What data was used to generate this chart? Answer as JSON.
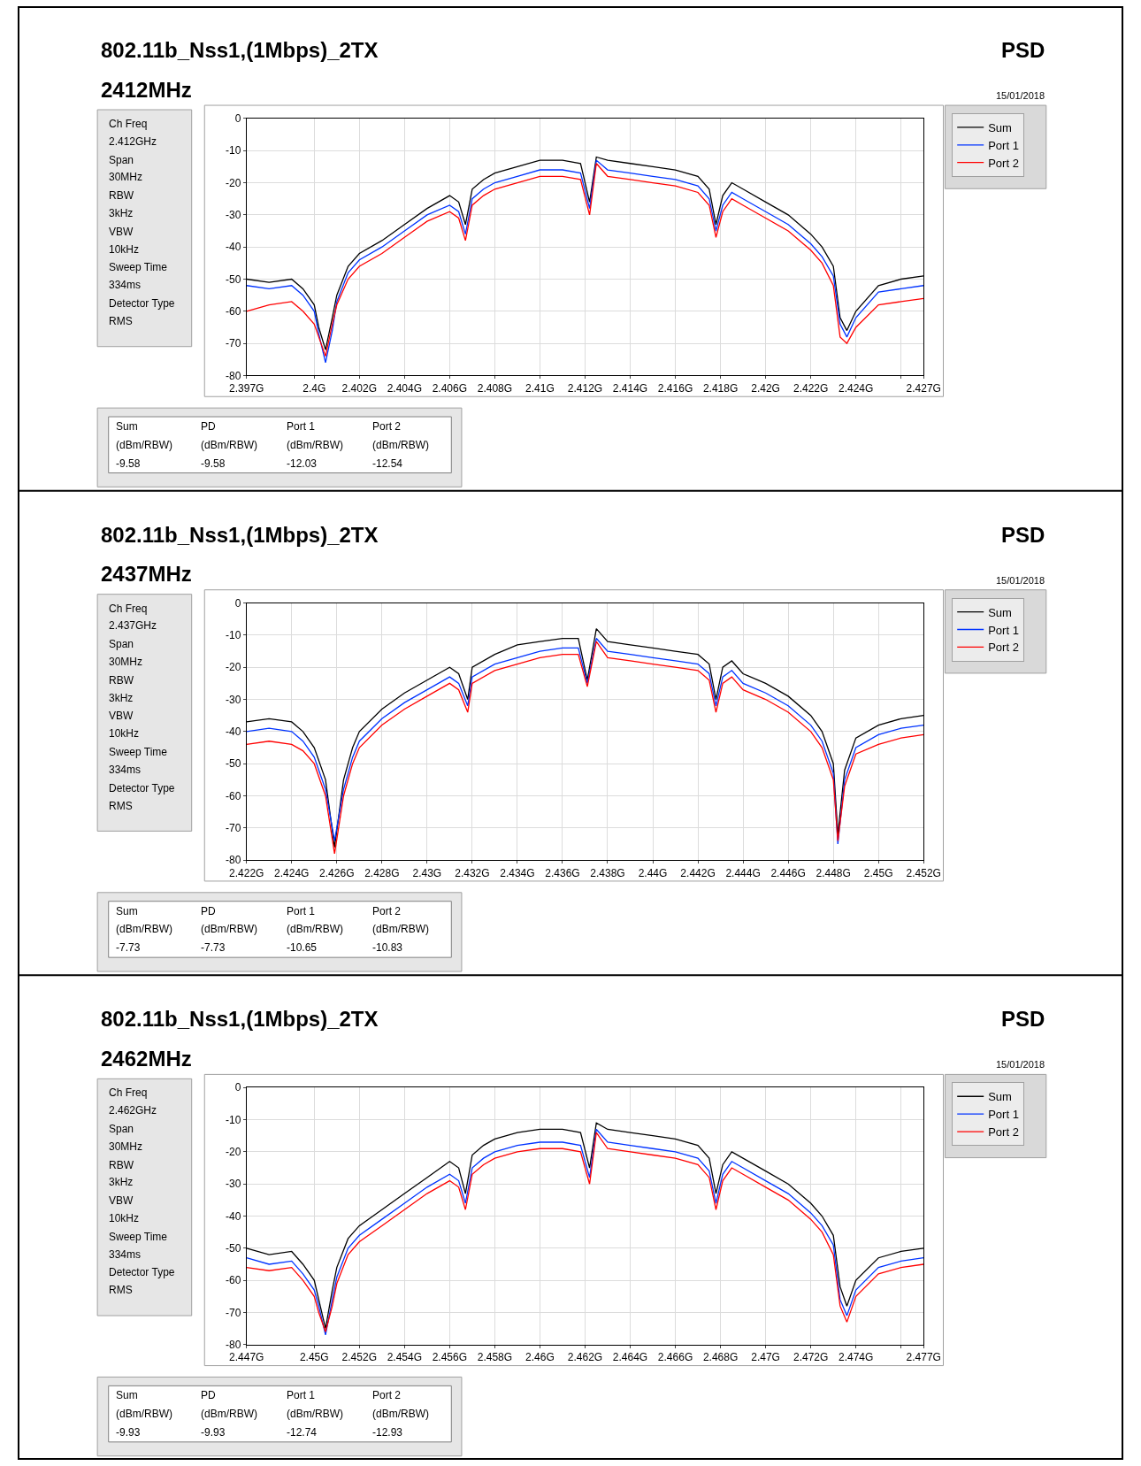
{
  "chart_data": [
    {
      "type": "line",
      "title": "802.11b_Nss1,(1Mbps)_2TX",
      "subtitle": "2412MHz",
      "annotations": [
        "PSD",
        "15/01/2018",
        "Ch Freq",
        "2.412GHz",
        "Span",
        "30MHz",
        "RBW",
        "3kHz",
        "VBW",
        "10kHz",
        "Sweep Time",
        "334ms",
        "Detector Type",
        "RMS",
        "Sum",
        "PD",
        "Port 1",
        "Port 2",
        "(dBm/RBW)",
        "(dBm/RBW)",
        "(dBm/RBW)",
        "(dBm/RBW)",
        "-9.58",
        "-9.58",
        "-12.03",
        "-12.54"
      ],
      "x": [
        2.397,
        2.398,
        2.399,
        2.3995,
        2.4,
        2.4002,
        2.4005,
        2.4008,
        2.401,
        2.4015,
        2.402,
        2.403,
        2.404,
        2.405,
        2.406,
        2.4064,
        2.4067,
        2.407,
        2.4075,
        2.408,
        2.409,
        2.41,
        2.411,
        2.4118,
        2.4122,
        2.4125,
        2.413,
        2.414,
        2.415,
        2.416,
        2.417,
        2.4175,
        2.4178,
        2.4181,
        2.4185,
        2.419,
        2.42,
        2.421,
        2.422,
        2.4225,
        2.423,
        2.4233,
        2.4236,
        2.424,
        2.425,
        2.426,
        2.427
      ],
      "series": [
        {
          "name": "Sum",
          "color": "#000000",
          "values": [
            -50,
            -51,
            -50,
            -53,
            -58,
            -65,
            -72,
            -62,
            -55,
            -46,
            -42,
            -38,
            -33,
            -28,
            -24,
            -26,
            -33,
            -22,
            -19,
            -17,
            -15,
            -13,
            -13,
            -14,
            -26,
            -12,
            -13,
            -14,
            -15,
            -16,
            -18,
            -22,
            -33,
            -24,
            -20,
            -22,
            -26,
            -30,
            -36,
            -40,
            -46,
            -62,
            -66,
            -60,
            -52,
            -50,
            -49
          ]
        },
        {
          "name": "Port 1",
          "color": "#0033ff",
          "values": [
            -52,
            -53,
            -52,
            -55,
            -60,
            -67,
            -76,
            -66,
            -57,
            -48,
            -44,
            -40,
            -35,
            -30,
            -27,
            -29,
            -36,
            -25,
            -22,
            -20,
            -18,
            -16,
            -16,
            -17,
            -28,
            -13,
            -16,
            -17,
            -18,
            -19,
            -21,
            -25,
            -35,
            -27,
            -23,
            -25,
            -29,
            -33,
            -39,
            -43,
            -49,
            -64,
            -68,
            -62,
            -54,
            -53,
            -52
          ]
        },
        {
          "name": "Port 2",
          "color": "#ff0000",
          "values": [
            -60,
            -58,
            -57,
            -60,
            -64,
            -68,
            -74,
            -64,
            -58,
            -50,
            -46,
            -42,
            -37,
            -32,
            -29,
            -31,
            -38,
            -27,
            -24,
            -22,
            -20,
            -18,
            -18,
            -19,
            -30,
            -14,
            -18,
            -19,
            -20,
            -21,
            -23,
            -27,
            -37,
            -29,
            -25,
            -27,
            -31,
            -35,
            -41,
            -45,
            -52,
            -68,
            -70,
            -65,
            -58,
            -57,
            -56
          ]
        }
      ],
      "xlim": [
        2.397,
        2.427
      ],
      "xticks": [
        {
          "value": 2.397,
          "label": "2.397G"
        },
        {
          "value": 2.4,
          "label": "2.4G"
        },
        {
          "value": 2.402,
          "label": "2.402G"
        },
        {
          "value": 2.404,
          "label": "2.404G"
        },
        {
          "value": 2.406,
          "label": "2.406G"
        },
        {
          "value": 2.408,
          "label": "2.408G"
        },
        {
          "value": 2.41,
          "label": "2.41G"
        },
        {
          "value": 2.412,
          "label": "2.412G"
        },
        {
          "value": 2.414,
          "label": "2.414G"
        },
        {
          "value": 2.416,
          "label": "2.416G"
        },
        {
          "value": 2.418,
          "label": "2.418G"
        },
        {
          "value": 2.42,
          "label": "2.42G"
        },
        {
          "value": 2.422,
          "label": "2.422G"
        },
        {
          "value": 2.424,
          "label": "2.424G"
        },
        {
          "value": 2.426,
          "label": null
        },
        {
          "value": 2.427,
          "label": "2.427G"
        }
      ],
      "ylim": [
        -80,
        0
      ],
      "yticks": [
        0,
        -10,
        -20,
        -30,
        -40,
        -50,
        -60,
        -70,
        -80
      ],
      "grid": true,
      "legend": "right"
    },
    {
      "type": "line",
      "title": "802.11b_Nss1,(1Mbps)_2TX",
      "subtitle": "2437MHz",
      "annotations": [
        "PSD",
        "15/01/2018",
        "Ch Freq",
        "2.437GHz",
        "Span",
        "30MHz",
        "RBW",
        "3kHz",
        "VBW",
        "10kHz",
        "Sweep Time",
        "334ms",
        "Detector Type",
        "RMS",
        "Sum",
        "PD",
        "Port 1",
        "Port 2",
        "(dBm/RBW)",
        "(dBm/RBW)",
        "(dBm/RBW)",
        "(dBm/RBW)",
        "-7.73",
        "-7.73",
        "-10.65",
        "-10.83"
      ],
      "x": [
        2.422,
        2.423,
        2.424,
        2.4245,
        2.425,
        2.4255,
        2.4259,
        2.4263,
        2.4267,
        2.427,
        2.428,
        2.429,
        2.43,
        2.4305,
        2.431,
        2.4314,
        2.4318,
        2.432,
        2.433,
        2.434,
        2.435,
        2.436,
        2.4367,
        2.4371,
        2.4375,
        2.438,
        2.439,
        2.44,
        2.441,
        2.442,
        2.4425,
        2.4428,
        2.4431,
        2.4435,
        2.444,
        2.445,
        2.446,
        2.447,
        2.4475,
        2.448,
        2.4482,
        2.4485,
        2.449,
        2.45,
        2.451,
        2.452
      ],
      "series": [
        {
          "name": "Sum",
          "color": "#000000",
          "values": [
            -37,
            -36,
            -37,
            -40,
            -45,
            -55,
            -76,
            -55,
            -45,
            -40,
            -33,
            -28,
            -24,
            -22,
            -20,
            -22,
            -30,
            -20,
            -16,
            -13,
            -12,
            -11,
            -11,
            -24,
            -8,
            -12,
            -13,
            -14,
            -15,
            -16,
            -19,
            -30,
            -20,
            -18,
            -22,
            -25,
            -29,
            -35,
            -40,
            -50,
            -72,
            -52,
            -42,
            -38,
            -36,
            -35
          ]
        },
        {
          "name": "Port 1",
          "color": "#0033ff",
          "values": [
            -40,
            -39,
            -40,
            -43,
            -48,
            -58,
            -74,
            -58,
            -48,
            -43,
            -36,
            -31,
            -27,
            -25,
            -23,
            -25,
            -32,
            -23,
            -19,
            -17,
            -15,
            -14,
            -14,
            -25,
            -11,
            -15,
            -16,
            -17,
            -18,
            -19,
            -22,
            -32,
            -23,
            -21,
            -25,
            -28,
            -32,
            -38,
            -43,
            -53,
            -75,
            -55,
            -45,
            -41,
            -39,
            -38
          ]
        },
        {
          "name": "Port 2",
          "color": "#ff0000",
          "values": [
            -44,
            -43,
            -44,
            -46,
            -50,
            -60,
            -78,
            -60,
            -50,
            -45,
            -38,
            -33,
            -29,
            -27,
            -25,
            -27,
            -34,
            -25,
            -21,
            -19,
            -17,
            -16,
            -16,
            -26,
            -12,
            -17,
            -18,
            -19,
            -20,
            -21,
            -24,
            -34,
            -25,
            -23,
            -27,
            -30,
            -34,
            -40,
            -45,
            -55,
            -74,
            -57,
            -47,
            -44,
            -42,
            -41
          ]
        }
      ],
      "xlim": [
        2.422,
        2.452
      ],
      "xticks": [
        {
          "value": 2.422,
          "label": "2.422G"
        },
        {
          "value": 2.424,
          "label": "2.424G"
        },
        {
          "value": 2.426,
          "label": "2.426G"
        },
        {
          "value": 2.428,
          "label": "2.428G"
        },
        {
          "value": 2.43,
          "label": "2.43G"
        },
        {
          "value": 2.432,
          "label": "2.432G"
        },
        {
          "value": 2.434,
          "label": "2.434G"
        },
        {
          "value": 2.436,
          "label": "2.436G"
        },
        {
          "value": 2.438,
          "label": "2.438G"
        },
        {
          "value": 2.44,
          "label": "2.44G"
        },
        {
          "value": 2.442,
          "label": "2.442G"
        },
        {
          "value": 2.444,
          "label": "2.444G"
        },
        {
          "value": 2.446,
          "label": "2.446G"
        },
        {
          "value": 2.448,
          "label": "2.448G"
        },
        {
          "value": 2.45,
          "label": "2.45G"
        },
        {
          "value": 2.452,
          "label": "2.452G"
        }
      ],
      "ylim": [
        -80,
        0
      ],
      "yticks": [
        0,
        -10,
        -20,
        -30,
        -40,
        -50,
        -60,
        -70,
        -80
      ],
      "grid": true,
      "legend": "right"
    },
    {
      "type": "line",
      "title": "802.11b_Nss1,(1Mbps)_2TX",
      "subtitle": "2462MHz",
      "annotations": [
        "PSD",
        "15/01/2018",
        "Ch Freq",
        "2.462GHz",
        "Span",
        "30MHz",
        "RBW",
        "3kHz",
        "VBW",
        "10kHz",
        "Sweep Time",
        "334ms",
        "Detector Type",
        "RMS",
        "Sum",
        "PD",
        "Port 1",
        "Port 2",
        "(dBm/RBW)",
        "(dBm/RBW)",
        "(dBm/RBW)",
        "(dBm/RBW)",
        "-9.93",
        "-9.93",
        "-12.74",
        "-12.93"
      ],
      "x": [
        2.447,
        2.448,
        2.449,
        2.4495,
        2.45,
        2.4502,
        2.4505,
        2.4508,
        2.451,
        2.4515,
        2.452,
        2.453,
        2.454,
        2.455,
        2.456,
        2.4564,
        2.4567,
        2.457,
        2.4575,
        2.458,
        2.459,
        2.46,
        2.461,
        2.4618,
        2.4622,
        2.4625,
        2.463,
        2.464,
        2.465,
        2.466,
        2.467,
        2.4675,
        2.4678,
        2.4681,
        2.4685,
        2.469,
        2.47,
        2.471,
        2.472,
        2.4725,
        2.473,
        2.4733,
        2.4736,
        2.474,
        2.475,
        2.476,
        2.477
      ],
      "series": [
        {
          "name": "Sum",
          "color": "#000000",
          "values": [
            -50,
            -52,
            -51,
            -55,
            -60,
            -66,
            -75,
            -63,
            -56,
            -47,
            -43,
            -38,
            -33,
            -28,
            -23,
            -25,
            -33,
            -21,
            -18,
            -16,
            -14,
            -13,
            -13,
            -14,
            -25,
            -11,
            -13,
            -14,
            -15,
            -16,
            -18,
            -22,
            -33,
            -24,
            -20,
            -22,
            -26,
            -30,
            -36,
            -40,
            -46,
            -62,
            -68,
            -60,
            -53,
            -51,
            -50
          ]
        },
        {
          "name": "Port 1",
          "color": "#0033ff",
          "values": [
            -53,
            -55,
            -54,
            -58,
            -63,
            -68,
            -77,
            -66,
            -59,
            -50,
            -46,
            -41,
            -36,
            -31,
            -27,
            -29,
            -36,
            -25,
            -22,
            -20,
            -18,
            -17,
            -17,
            -18,
            -28,
            -13,
            -17,
            -18,
            -19,
            -20,
            -22,
            -26,
            -36,
            -27,
            -23,
            -25,
            -29,
            -33,
            -39,
            -43,
            -49,
            -66,
            -71,
            -63,
            -56,
            -54,
            -53
          ]
        },
        {
          "name": "Port 2",
          "color": "#ff0000",
          "values": [
            -56,
            -57,
            -56,
            -60,
            -65,
            -70,
            -76,
            -68,
            -61,
            -52,
            -48,
            -43,
            -38,
            -33,
            -29,
            -31,
            -38,
            -27,
            -24,
            -22,
            -20,
            -19,
            -19,
            -20,
            -30,
            -14,
            -19,
            -20,
            -21,
            -22,
            -24,
            -28,
            -38,
            -29,
            -25,
            -27,
            -31,
            -35,
            -41,
            -45,
            -52,
            -68,
            -73,
            -65,
            -58,
            -56,
            -55
          ]
        }
      ],
      "xlim": [
        2.447,
        2.477
      ],
      "xticks": [
        {
          "value": 2.447,
          "label": "2.447G"
        },
        {
          "value": 2.45,
          "label": "2.45G"
        },
        {
          "value": 2.452,
          "label": "2.452G"
        },
        {
          "value": 2.454,
          "label": "2.454G"
        },
        {
          "value": 2.456,
          "label": "2.456G"
        },
        {
          "value": 2.458,
          "label": "2.458G"
        },
        {
          "value": 2.46,
          "label": "2.46G"
        },
        {
          "value": 2.462,
          "label": "2.462G"
        },
        {
          "value": 2.464,
          "label": "2.464G"
        },
        {
          "value": 2.466,
          "label": "2.466G"
        },
        {
          "value": 2.468,
          "label": "2.468G"
        },
        {
          "value": 2.47,
          "label": "2.47G"
        },
        {
          "value": 2.472,
          "label": "2.472G"
        },
        {
          "value": 2.474,
          "label": "2.474G"
        },
        {
          "value": 2.476,
          "label": null
        },
        {
          "value": 2.477,
          "label": "2.477G"
        }
      ],
      "ylim": [
        -80,
        0
      ],
      "yticks": [
        0,
        -10,
        -20,
        -30,
        -40,
        -50,
        -60,
        -70,
        -80
      ],
      "grid": true,
      "legend": "right"
    }
  ]
}
